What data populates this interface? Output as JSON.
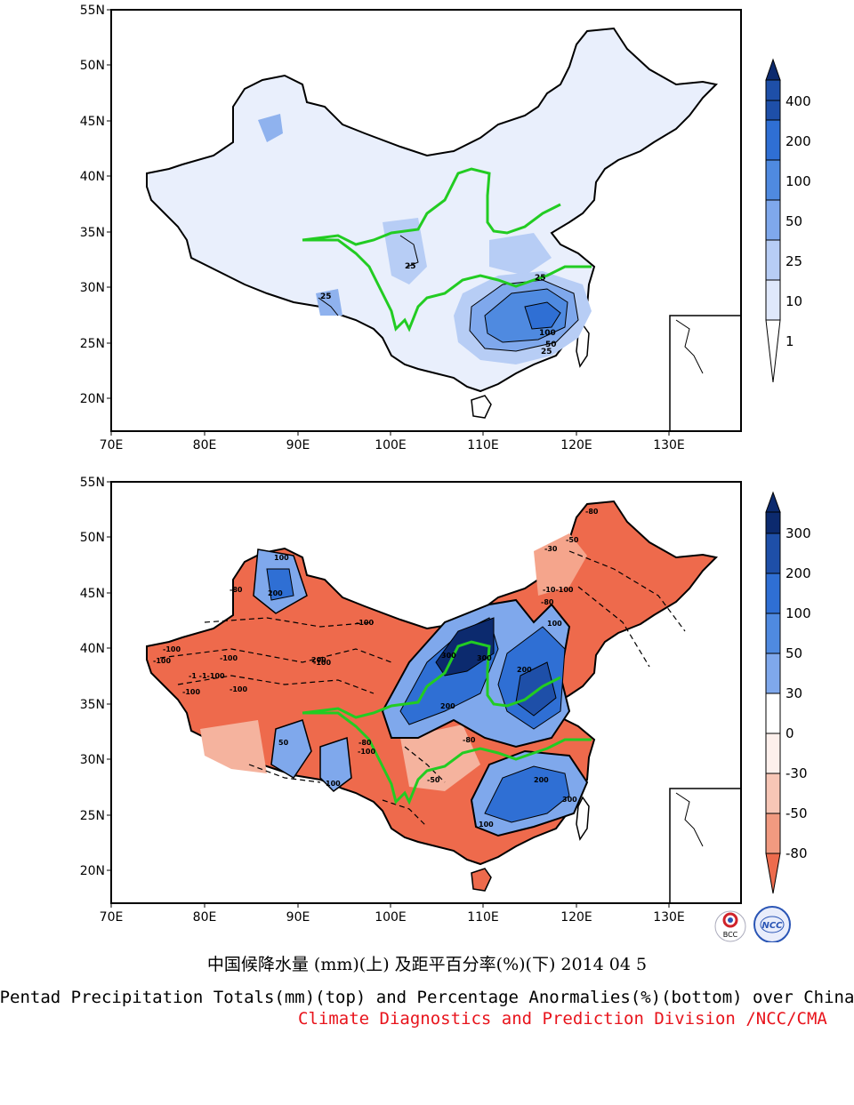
{
  "maps": [
    {
      "id": "top",
      "lat_labels": [
        "55N",
        "50N",
        "45N",
        "40N",
        "35N",
        "30N",
        "25N",
        "20N"
      ],
      "lon_labels": [
        "70E",
        "80E",
        "90E",
        "100E",
        "110E",
        "120E",
        "130E"
      ],
      "contour_labels": [
        "25",
        "25",
        "25",
        "100",
        "50",
        "25"
      ],
      "colorbar": {
        "labels": [
          "400",
          "200",
          "100",
          "50",
          "25",
          "10",
          "1"
        ],
        "colors": [
          "#0c2a6e",
          "#1e4fa8",
          "#2f6fd4",
          "#4f8ae0",
          "#7fa8ec",
          "#b7cdf5",
          "#dfe8fb",
          "#ffffff"
        ]
      }
    },
    {
      "id": "bottom",
      "lat_labels": [
        "55N",
        "50N",
        "45N",
        "40N",
        "35N",
        "30N",
        "25N",
        "20N"
      ],
      "lon_labels": [
        "70E",
        "80E",
        "90E",
        "100E",
        "110E",
        "120E",
        "130E"
      ],
      "contour_labels": [
        "100",
        "200",
        "-80",
        "-100",
        "-100",
        "-100",
        "-100",
        "-100",
        "-1 -1-100",
        "-100",
        "-100",
        "300",
        "300",
        "200",
        "200",
        "100",
        "200",
        "100",
        "-30",
        "-10-100",
        "-80",
        "-80",
        "50",
        "-50",
        "-100",
        "-80",
        "300",
        "200",
        "100",
        "-50",
        "-80"
      ],
      "colorbar": {
        "labels": [
          "300",
          "200",
          "100",
          "50",
          "30",
          "0",
          "-30",
          "-50",
          "-80"
        ],
        "colors": [
          "#0c2a6e",
          "#1e4fa8",
          "#2f6fd4",
          "#4f8ae0",
          "#7fa8ec",
          "#c3d5f6",
          "#fdf0ec",
          "#f7c6b6",
          "#f19a80",
          "#ed6b4d"
        ]
      }
    }
  ],
  "logos": {
    "left": "BCC",
    "right": "NCC"
  },
  "title_cn": "中国候降水量 (mm)(上) 及距平百分率(%)(下) 2014 04 5",
  "title_en": "Pentad Precipitation Totals(mm)(top) and Percentage Anormalies(%)(bottom) over China",
  "credit": "Climate Diagnostics and Prediction Division /NCC/CMA"
}
